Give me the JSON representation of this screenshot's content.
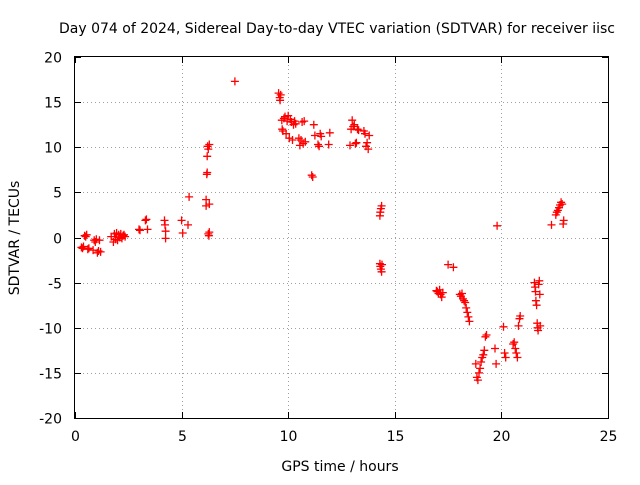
{
  "chart_data": {
    "type": "scatter",
    "title": "Day 074 of 2024, Sidereal Day-to-day VTEC variation (SDTVAR) for receiver iisc",
    "xlabel": "GPS time / hours",
    "ylabel": "SDTVAR / TECUs",
    "xlim": [
      0,
      25
    ],
    "ylim": [
      -20,
      20
    ],
    "x_ticks": [
      0,
      5,
      10,
      15,
      20,
      25
    ],
    "x_tick_labels": [
      "0",
      "5",
      "10",
      "15",
      "20",
      "25"
    ],
    "y_ticks": [
      -20,
      -15,
      -10,
      -5,
      0,
      5,
      10,
      15,
      20
    ],
    "y_tick_labels": [
      "-20",
      "-15",
      "-10",
      "-5",
      "0",
      "5",
      "10",
      "15",
      "20"
    ],
    "grid": true,
    "marker": "plus",
    "marker_color": "#ff0000",
    "series": [
      {
        "name": "SDTVAR",
        "points": [
          [
            0.3,
            -1.1
          ],
          [
            0.35,
            -1.2
          ],
          [
            0.4,
            -1.0
          ],
          [
            0.45,
            0.2
          ],
          [
            0.5,
            0.1
          ],
          [
            0.55,
            0.3
          ],
          [
            0.6,
            -1.3
          ],
          [
            0.65,
            -1.2
          ],
          [
            0.85,
            -1.4
          ],
          [
            0.9,
            -0.3
          ],
          [
            0.95,
            -0.5
          ],
          [
            1.0,
            -0.2
          ],
          [
            1.05,
            -1.7
          ],
          [
            1.1,
            -1.5
          ],
          [
            1.15,
            -0.3
          ],
          [
            1.2,
            -1.6
          ],
          [
            1.7,
            0.1
          ],
          [
            1.8,
            -0.5
          ],
          [
            1.85,
            0.4
          ],
          [
            1.9,
            -0.2
          ],
          [
            1.95,
            0.5
          ],
          [
            2.0,
            -0.3
          ],
          [
            2.05,
            0.3
          ],
          [
            2.1,
            0.0
          ],
          [
            2.15,
            0.4
          ],
          [
            2.2,
            -0.1
          ],
          [
            2.25,
            0.2
          ],
          [
            2.3,
            0.3
          ],
          [
            2.35,
            0.1
          ],
          [
            3.0,
            0.9
          ],
          [
            3.05,
            0.8
          ],
          [
            3.3,
            1.9
          ],
          [
            3.35,
            2.0
          ],
          [
            3.4,
            0.9
          ],
          [
            4.2,
            1.9
          ],
          [
            4.22,
            1.4
          ],
          [
            4.25,
            0.7
          ],
          [
            4.25,
            -0.1
          ],
          [
            5.0,
            1.9
          ],
          [
            5.05,
            0.5
          ],
          [
            5.3,
            1.4
          ],
          [
            5.35,
            4.5
          ],
          [
            6.15,
            3.5
          ],
          [
            6.15,
            4.2
          ],
          [
            6.18,
            7.0
          ],
          [
            6.2,
            7.2
          ],
          [
            6.2,
            9.0
          ],
          [
            6.22,
            10.1
          ],
          [
            6.25,
            9.8
          ],
          [
            6.25,
            0.4
          ],
          [
            6.28,
            0.2
          ],
          [
            6.3,
            0.6
          ],
          [
            6.3,
            10.3
          ],
          [
            6.3,
            3.7
          ],
          [
            7.5,
            17.3
          ],
          [
            9.55,
            16.0
          ],
          [
            9.6,
            15.5
          ],
          [
            9.62,
            15.2
          ],
          [
            9.65,
            15.8
          ],
          [
            9.7,
            13.0
          ],
          [
            9.72,
            12.0
          ],
          [
            9.75,
            11.8
          ],
          [
            9.8,
            13.2
          ],
          [
            9.85,
            13.4
          ],
          [
            9.9,
            11.5
          ],
          [
            9.95,
            12.9
          ],
          [
            10.0,
            13.5
          ],
          [
            10.05,
            11.0
          ],
          [
            10.1,
            13.1
          ],
          [
            10.15,
            12.8
          ],
          [
            10.2,
            10.8
          ],
          [
            10.25,
            12.5
          ],
          [
            10.3,
            12.9
          ],
          [
            10.35,
            12.6
          ],
          [
            10.5,
            11.0
          ],
          [
            10.55,
            10.2
          ],
          [
            10.6,
            10.8
          ],
          [
            10.65,
            12.8
          ],
          [
            10.7,
            10.4
          ],
          [
            10.75,
            12.9
          ],
          [
            10.8,
            10.6
          ],
          [
            11.1,
            6.9
          ],
          [
            11.15,
            6.7
          ],
          [
            11.2,
            12.5
          ],
          [
            11.25,
            11.3
          ],
          [
            11.4,
            10.3
          ],
          [
            11.45,
            10.1
          ],
          [
            11.5,
            11.5
          ],
          [
            11.55,
            11.2
          ],
          [
            11.9,
            10.3
          ],
          [
            11.95,
            11.6
          ],
          [
            12.9,
            10.2
          ],
          [
            12.95,
            12.0
          ],
          [
            13.0,
            13.0
          ],
          [
            13.05,
            12.3
          ],
          [
            13.1,
            12.5
          ],
          [
            13.15,
            10.4
          ],
          [
            13.2,
            10.5
          ],
          [
            13.25,
            12.0
          ],
          [
            13.3,
            11.9
          ],
          [
            13.55,
            11.8
          ],
          [
            13.6,
            11.5
          ],
          [
            13.65,
            10.1
          ],
          [
            13.7,
            10.5
          ],
          [
            13.75,
            9.8
          ],
          [
            13.8,
            11.3
          ],
          [
            14.3,
            2.4
          ],
          [
            14.32,
            2.8
          ],
          [
            14.35,
            3.2
          ],
          [
            14.38,
            3.5
          ],
          [
            14.3,
            -2.9
          ],
          [
            14.32,
            -3.2
          ],
          [
            14.35,
            -3.5
          ],
          [
            14.38,
            -3.8
          ],
          [
            14.4,
            -3.0
          ],
          [
            16.95,
            -5.9
          ],
          [
            17.0,
            -6.0
          ],
          [
            17.05,
            -6.2
          ],
          [
            17.1,
            -5.8
          ],
          [
            17.15,
            -6.3
          ],
          [
            17.2,
            -6.6
          ],
          [
            17.25,
            -6.1
          ],
          [
            17.5,
            -3.0
          ],
          [
            17.75,
            -3.3
          ],
          [
            18.05,
            -6.3
          ],
          [
            18.1,
            -6.5
          ],
          [
            18.15,
            -6.2
          ],
          [
            18.2,
            -6.8
          ],
          [
            18.25,
            -7.0
          ],
          [
            18.3,
            -7.2
          ],
          [
            18.35,
            -7.8
          ],
          [
            18.4,
            -8.3
          ],
          [
            18.45,
            -8.8
          ],
          [
            18.5,
            -9.3
          ],
          [
            18.8,
            -14.0
          ],
          [
            18.85,
            -15.5
          ],
          [
            18.9,
            -15.8
          ],
          [
            18.95,
            -15.0
          ],
          [
            19.0,
            -14.5
          ],
          [
            19.05,
            -13.8
          ],
          [
            19.1,
            -13.3
          ],
          [
            19.15,
            -13.0
          ],
          [
            19.2,
            -12.5
          ],
          [
            19.25,
            -11.0
          ],
          [
            19.3,
            -10.8
          ],
          [
            19.7,
            -12.3
          ],
          [
            19.75,
            -14.0
          ],
          [
            19.8,
            1.3
          ],
          [
            20.1,
            -9.9
          ],
          [
            20.15,
            -12.8
          ],
          [
            20.2,
            -13.3
          ],
          [
            20.55,
            -11.8
          ],
          [
            20.6,
            -11.6
          ],
          [
            20.65,
            -12.3
          ],
          [
            20.7,
            -12.8
          ],
          [
            20.75,
            -13.3
          ],
          [
            20.8,
            -9.8
          ],
          [
            20.85,
            -9.0
          ],
          [
            20.88,
            -8.7
          ],
          [
            21.55,
            -5.0
          ],
          [
            21.58,
            -5.5
          ],
          [
            21.6,
            -6.0
          ],
          [
            21.62,
            -7.0
          ],
          [
            21.65,
            -7.5
          ],
          [
            21.68,
            -9.5
          ],
          [
            21.7,
            -10.0
          ],
          [
            21.72,
            -10.3
          ],
          [
            21.75,
            -5.2
          ],
          [
            21.78,
            -4.8
          ],
          [
            21.8,
            -6.3
          ],
          [
            21.82,
            -9.8
          ],
          [
            22.35,
            1.4
          ],
          [
            22.55,
            2.5
          ],
          [
            22.6,
            2.8
          ],
          [
            22.65,
            3.0
          ],
          [
            22.7,
            3.3
          ],
          [
            22.75,
            3.6
          ],
          [
            22.8,
            3.9
          ],
          [
            22.85,
            3.7
          ],
          [
            22.9,
            1.5
          ],
          [
            22.92,
            1.9
          ]
        ]
      }
    ]
  }
}
